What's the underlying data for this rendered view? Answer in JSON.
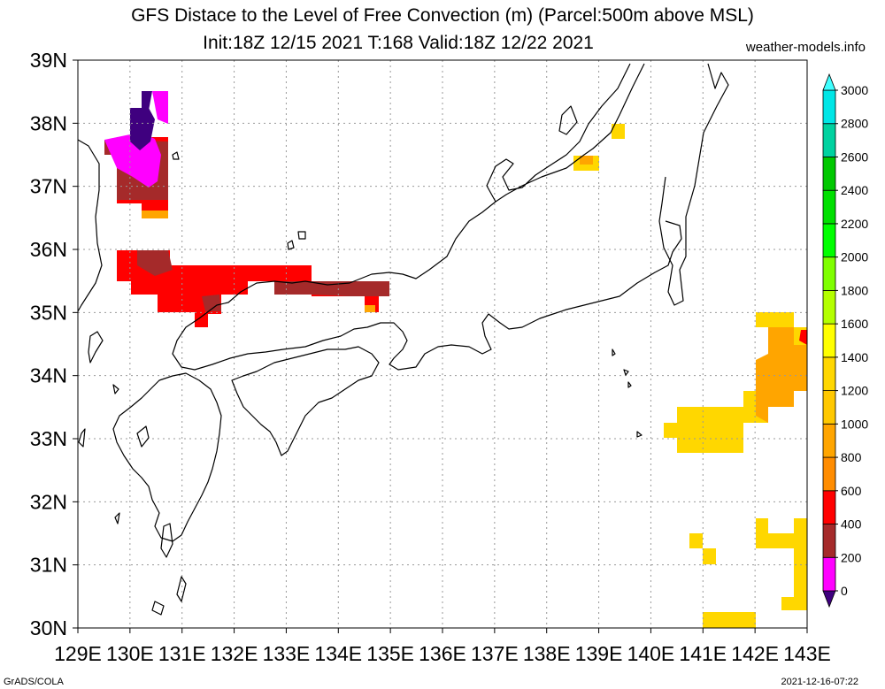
{
  "title": {
    "line1": "GFS Distace to the Level of Free Convection (m) (Parcel:500m above MSL)",
    "line2": "Init:18Z 12/15 2021 T:168 Valid:18Z 12/22 2021",
    "site": "weather-models.info"
  },
  "footer": {
    "left": "GrADS/COLA",
    "right": "2021-12-16-07:22"
  },
  "axes": {
    "lon_labels": [
      "129E",
      "130E",
      "131E",
      "132E",
      "133E",
      "134E",
      "135E",
      "136E",
      "137E",
      "138E",
      "139E",
      "140E",
      "141E",
      "142E",
      "143E"
    ],
    "lat_labels": [
      "30N",
      "31N",
      "32N",
      "33N",
      "34N",
      "35N",
      "36N",
      "37N",
      "38N",
      "39N"
    ]
  },
  "colorbar": {
    "labels": [
      "0",
      "200",
      "400",
      "600",
      "800",
      "1000",
      "1200",
      "1400",
      "1600",
      "1800",
      "2000",
      "2200",
      "2400",
      "2600",
      "2800",
      "3000"
    ],
    "colors": [
      "#3f007f",
      "#ff00ff",
      "#a52a2a",
      "#ff0000",
      "#ff8c00",
      "#ffa500",
      "#ffc800",
      "#ffd700",
      "#ffff00",
      "#b4ff00",
      "#7fff00",
      "#00ff00",
      "#00e000",
      "#00c800",
      "#00d2a0",
      "#00e6e6",
      "#40ffff"
    ]
  }
}
